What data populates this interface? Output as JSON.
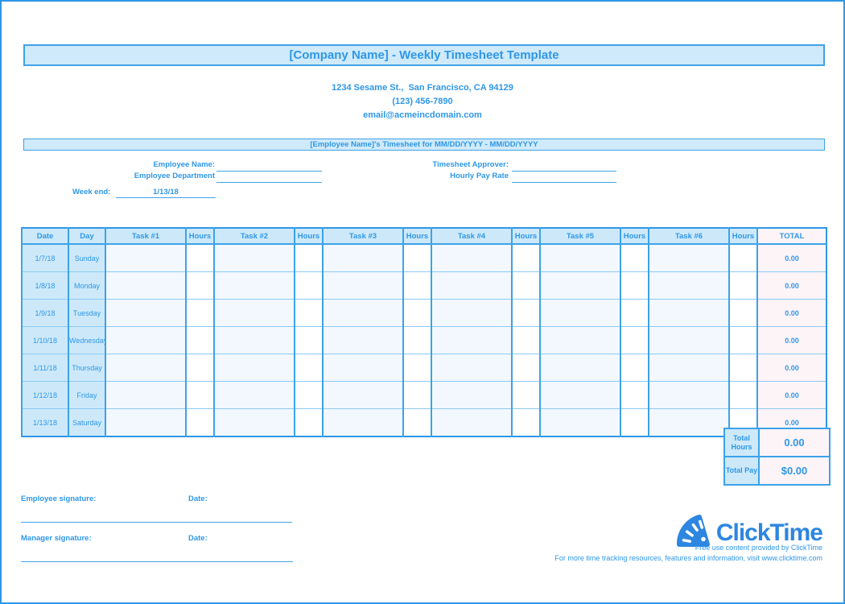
{
  "header": {
    "title": "[Company Name] - Weekly Timesheet Template",
    "address_lines": [
      "1234 Sesame St.,  San Francisco, CA 94129",
      "(123) 456-7890",
      "email@acmeincdomain.com"
    ],
    "subtitle": "[Employee Name]'s Timesheet for MM/DD/YYYY - MM/DD/YYYY"
  },
  "form": {
    "employee_name_label": "Employee Name:",
    "employee_name_value": "",
    "employee_department_label": "Employee Department",
    "employee_department_value": "",
    "timesheet_approver_label": "Timesheet Approver:",
    "timesheet_approver_value": "",
    "hourly_pay_rate_label": "Hourly Pay Rate",
    "hourly_pay_rate_value": "",
    "week_end_label": "Week end:",
    "week_end_value": "1/13/18"
  },
  "timesheet_table": {
    "headers": [
      "Date",
      "Day",
      "Task #1",
      "Hours",
      "Task #2",
      "Hours",
      "Task #3",
      "Hours",
      "Task #4",
      "Hours",
      "Task #5",
      "Hours",
      "Task #6",
      "Hours",
      "TOTAL"
    ],
    "rows": [
      {
        "date": "1/7/18",
        "day": "Sunday",
        "tasks": [
          "",
          "",
          "",
          "",
          "",
          ""
        ],
        "hours": [
          "",
          "",
          "",
          "",
          "",
          ""
        ],
        "total": "0.00"
      },
      {
        "date": "1/8/18",
        "day": "Monday",
        "tasks": [
          "",
          "",
          "",
          "",
          "",
          ""
        ],
        "hours": [
          "",
          "",
          "",
          "",
          "",
          ""
        ],
        "total": "0.00"
      },
      {
        "date": "1/9/18",
        "day": "Tuesday",
        "tasks": [
          "",
          "",
          "",
          "",
          "",
          ""
        ],
        "hours": [
          "",
          "",
          "",
          "",
          "",
          ""
        ],
        "total": "0.00"
      },
      {
        "date": "1/10/18",
        "day": "Wednesday",
        "tasks": [
          "",
          "",
          "",
          "",
          "",
          ""
        ],
        "hours": [
          "",
          "",
          "",
          "",
          "",
          ""
        ],
        "total": "0.00"
      },
      {
        "date": "1/11/18",
        "day": "Thursday",
        "tasks": [
          "",
          "",
          "",
          "",
          "",
          ""
        ],
        "hours": [
          "",
          "",
          "",
          "",
          "",
          ""
        ],
        "total": "0.00"
      },
      {
        "date": "1/12/18",
        "day": "Friday",
        "tasks": [
          "",
          "",
          "",
          "",
          "",
          ""
        ],
        "hours": [
          "",
          "",
          "",
          "",
          "",
          ""
        ],
        "total": "0.00"
      },
      {
        "date": "1/13/18",
        "day": "Saturday",
        "tasks": [
          "",
          "",
          "",
          "",
          "",
          ""
        ],
        "hours": [
          "",
          "",
          "",
          "",
          "",
          ""
        ],
        "total": "0.00"
      }
    ],
    "totals": {
      "total_hours_label": "Total Hours",
      "total_hours_value": "0.00",
      "total_pay_label": "Total Pay",
      "total_pay_value": "$0.00"
    }
  },
  "signatures": {
    "employee_label": "Employee signature:",
    "employee_date_label": "Date:",
    "manager_label": "Manager signature:",
    "manager_date_label": "Date:"
  },
  "footer": {
    "logo_text": "ClickTime",
    "logo_icon": "stopwatch-gauge-icon",
    "credit_line": "Free use content provided by ClickTime",
    "info_line": "For more time tracking resources, features and information, visit www.clicktime.com"
  },
  "colors": {
    "accent_blue": "#2e97e8",
    "banner_fill": "#cfeafa",
    "banner_border": "#41a2e6",
    "cell_blue": "#cde9f9",
    "task_cell_fill": "#f2f8fd",
    "total_cell_fill": "#fdf4f8",
    "grid_strong": "#3da2e9",
    "grid_light": "#8ccaf4",
    "logo_blue": "#2d86e0"
  }
}
